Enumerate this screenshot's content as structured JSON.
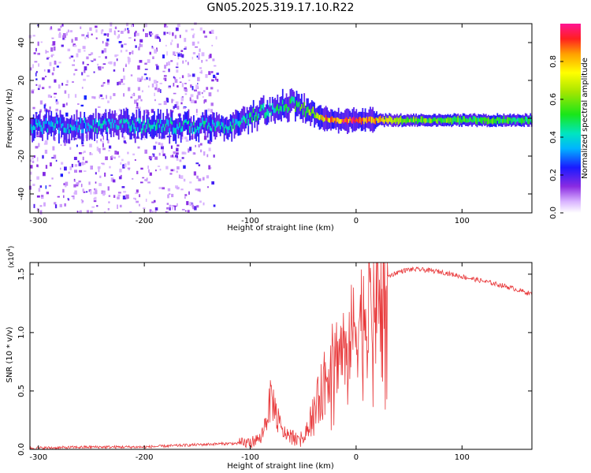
{
  "title": "GN05.2025.319.17.10.R22",
  "chart_data": [
    {
      "type": "heatmap",
      "name": "spectrogram",
      "xlabel": "Height of straight line (km)",
      "ylabel": "Frequency (Hz)",
      "xlim": [
        -308,
        166
      ],
      "ylim": [
        -50,
        50
      ],
      "xticks": [
        -300,
        -200,
        -100,
        0,
        100
      ],
      "xtick_labels": [
        "-300",
        "-200",
        "-100",
        "0",
        "100"
      ],
      "yticks": [
        -40,
        -20,
        0,
        20,
        40
      ],
      "ytick_labels": [
        "-40",
        "-20",
        "0",
        "20",
        "40"
      ],
      "colorbar": {
        "label": "Normalized spectral amplitude",
        "ticks": [
          0.0,
          0.2,
          0.4,
          0.6,
          0.8
        ],
        "tick_labels": [
          "0.0",
          "0.2",
          "0.4",
          "0.6",
          "0.8"
        ],
        "range": [
          0,
          1
        ]
      },
      "ridge": {
        "x": [
          -300,
          -200,
          -130,
          -110,
          -100,
          -80,
          -60,
          -50,
          -40,
          -30,
          -20,
          -10,
          0,
          20,
          50,
          100,
          166
        ],
        "y": [
          -4,
          -4,
          -4,
          -4,
          1,
          5,
          8,
          5,
          2,
          0,
          -1,
          -1,
          -1,
          -1,
          -1,
          -1,
          -1
        ],
        "amplitude": [
          0.4,
          0.45,
          0.45,
          0.45,
          0.5,
          0.5,
          0.55,
          0.6,
          0.7,
          0.85,
          0.95,
          1.0,
          1.0,
          0.85,
          0.65,
          0.6,
          0.55
        ]
      }
    },
    {
      "type": "line",
      "name": "snr",
      "xlabel": "Height of straight line (km)",
      "ylabel": "SNR (10 * v/v)",
      "multiplier": "(x10^4)",
      "multiplier_base": "(x10",
      "multiplier_exp": "4",
      "multiplier_close": ")",
      "xlim": [
        -308,
        166
      ],
      "ylim": [
        0,
        1.6
      ],
      "xticks": [
        -300,
        -200,
        -100,
        0,
        100
      ],
      "xtick_labels": [
        "-300",
        "-200",
        "-100",
        "0",
        "100"
      ],
      "yticks": [
        0.0,
        0.5,
        1.0,
        1.5
      ],
      "ytick_labels": [
        "0.0",
        "0.5",
        "1.0",
        "1.5"
      ],
      "series_color": "#e8383a",
      "envelope": {
        "x": [
          -308,
          -250,
          -200,
          -150,
          -120,
          -110,
          -100,
          -90,
          -85,
          -80,
          -75,
          -70,
          -60,
          -50,
          -40,
          -35,
          -30,
          -20,
          -10,
          0,
          10,
          20,
          30,
          40,
          50,
          60,
          70,
          80,
          90,
          100,
          120,
          140,
          166
        ],
        "y": [
          0.01,
          0.02,
          0.02,
          0.04,
          0.05,
          0.05,
          0.06,
          0.1,
          0.25,
          0.45,
          0.3,
          0.15,
          0.12,
          0.1,
          0.35,
          0.45,
          0.6,
          0.8,
          0.9,
          1.05,
          1.25,
          1.4,
          1.48,
          1.52,
          1.54,
          1.54,
          1.53,
          1.52,
          1.5,
          1.48,
          1.44,
          1.4,
          1.33
        ]
      }
    }
  ]
}
